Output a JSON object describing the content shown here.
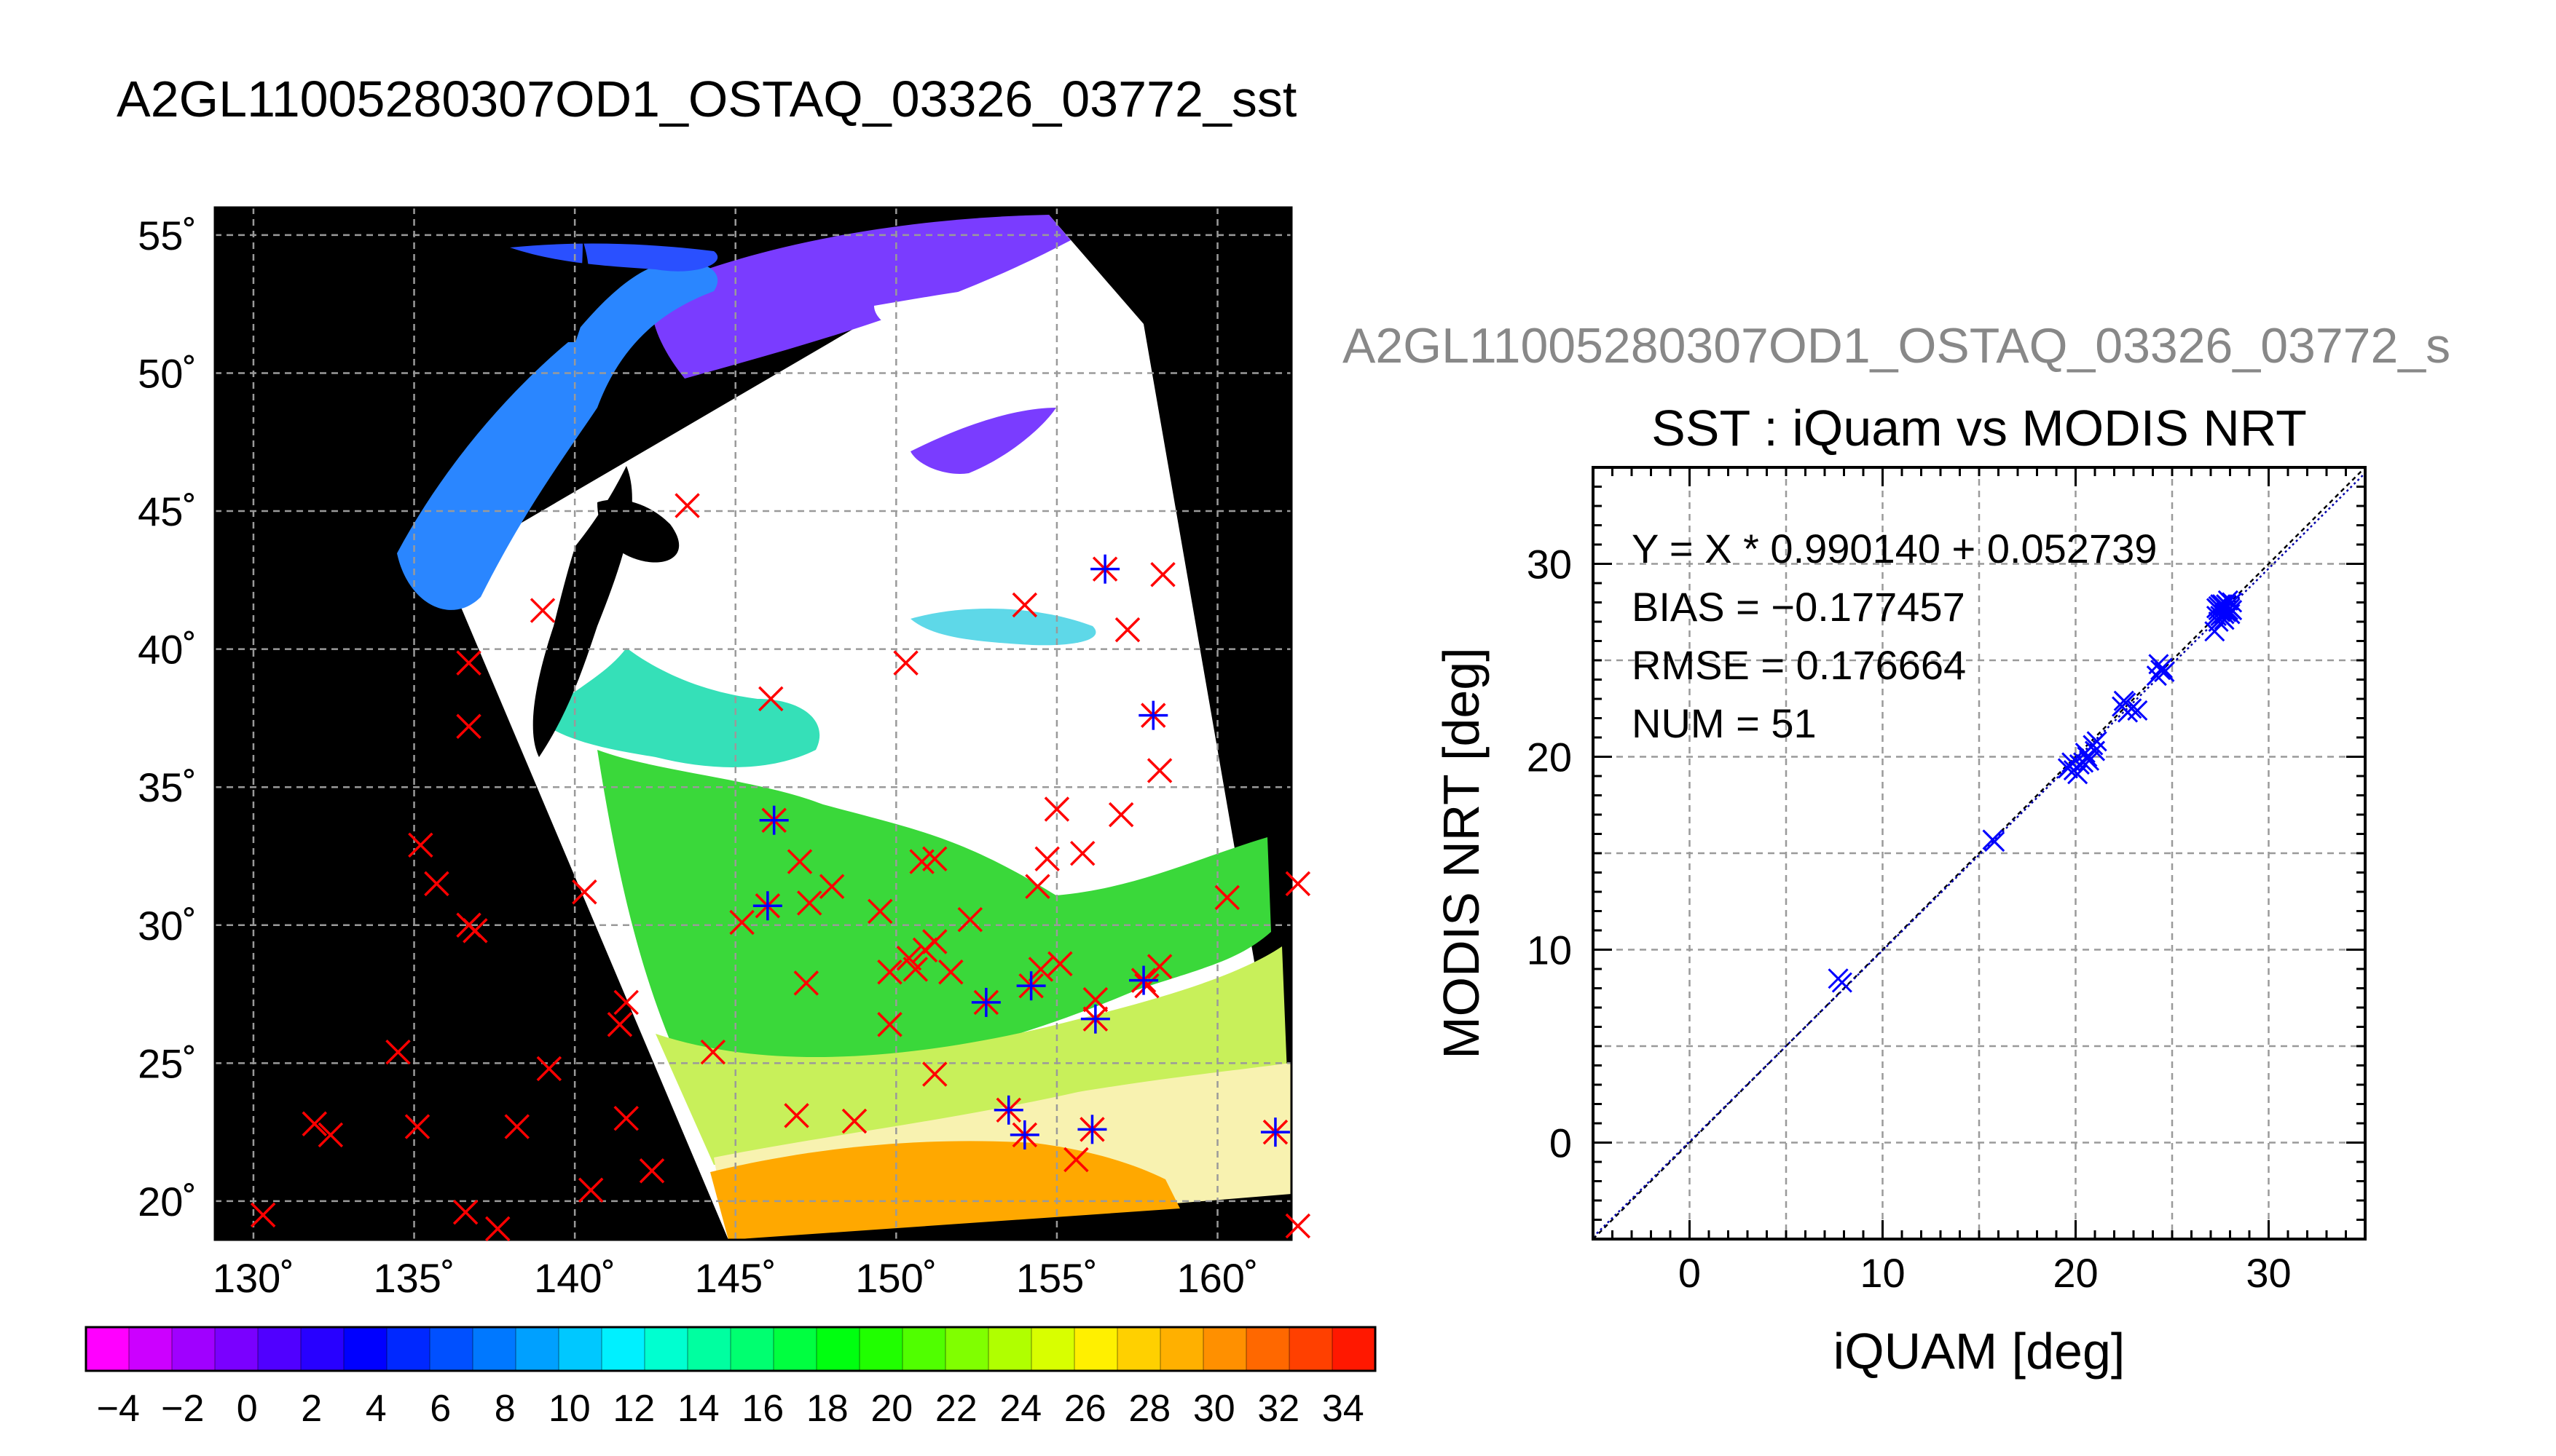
{
  "page_title": "A2GL11005280307OD1_OSTAQ_03326_03772_sst",
  "chart_data": [
    {
      "type": "map",
      "x_ticks": [
        130,
        135,
        140,
        145,
        150,
        155,
        160
      ],
      "y_ticks": [
        20,
        25,
        30,
        35,
        40,
        45,
        50,
        55
      ],
      "xlim": [
        128.8,
        162.3
      ],
      "ylim": [
        18.6,
        56
      ],
      "grid": true,
      "colorbar": {
        "ticks": [
          "−4",
          "−2",
          "0",
          "2",
          "4",
          "6",
          "8",
          "10",
          "12",
          "14",
          "16",
          "18",
          "20",
          "22",
          "24",
          "26",
          "28",
          "30",
          "32",
          "34"
        ],
        "range": [
          -5,
          35
        ],
        "colors": [
          "#ff00ff",
          "#cc00ff",
          "#a000ff",
          "#7a00ff",
          "#5000ff",
          "#2800ff",
          "#0000ff",
          "#0028ff",
          "#0050ff",
          "#0078ff",
          "#00a0ff",
          "#00c8ff",
          "#00f0ff",
          "#00ffd0",
          "#00ffa0",
          "#00ff70",
          "#00ff40",
          "#00ff10",
          "#20ff00",
          "#50ff00",
          "#80ff00",
          "#b0ff00",
          "#d8ff00",
          "#fff000",
          "#ffd000",
          "#ffb000",
          "#ff9000",
          "#ff6800",
          "#ff4000",
          "#ff1800"
        ]
      },
      "markers_matched": [
        {
          "lon": 146.2,
          "lat": 33.8
        },
        {
          "lon": 146.0,
          "lat": 30.7
        },
        {
          "lon": 152.8,
          "lat": 27.2
        },
        {
          "lon": 154.2,
          "lat": 27.8
        },
        {
          "lon": 156.2,
          "lat": 26.6
        },
        {
          "lon": 157.7,
          "lat": 28.0
        },
        {
          "lon": 153.5,
          "lat": 23.3
        },
        {
          "lon": 154.0,
          "lat": 22.4
        },
        {
          "lon": 156.1,
          "lat": 22.6
        },
        {
          "lon": 161.8,
          "lat": 22.5
        },
        {
          "lon": 156.5,
          "lat": 42.9
        },
        {
          "lon": 158.0,
          "lat": 37.6
        }
      ],
      "markers_unmatched": [
        {
          "lon": 143.5,
          "lat": 45.2
        },
        {
          "lon": 139.0,
          "lat": 41.4
        },
        {
          "lon": 136.7,
          "lat": 39.5
        },
        {
          "lon": 136.7,
          "lat": 37.2
        },
        {
          "lon": 135.2,
          "lat": 32.9
        },
        {
          "lon": 135.7,
          "lat": 31.5
        },
        {
          "lon": 136.7,
          "lat": 30.0
        },
        {
          "lon": 136.9,
          "lat": 29.8
        },
        {
          "lon": 140.3,
          "lat": 31.2
        },
        {
          "lon": 141.6,
          "lat": 27.2
        },
        {
          "lon": 141.4,
          "lat": 26.4
        },
        {
          "lon": 134.5,
          "lat": 25.4
        },
        {
          "lon": 139.2,
          "lat": 24.8
        },
        {
          "lon": 131.9,
          "lat": 22.8
        },
        {
          "lon": 132.4,
          "lat": 22.4
        },
        {
          "lon": 135.1,
          "lat": 22.7
        },
        {
          "lon": 138.2,
          "lat": 22.7
        },
        {
          "lon": 141.6,
          "lat": 23.0
        },
        {
          "lon": 142.4,
          "lat": 21.1
        },
        {
          "lon": 140.5,
          "lat": 20.4
        },
        {
          "lon": 136.6,
          "lat": 19.6
        },
        {
          "lon": 137.6,
          "lat": 19.0
        },
        {
          "lon": 130.3,
          "lat": 19.5
        },
        {
          "lon": 144.3,
          "lat": 25.4
        },
        {
          "lon": 145.2,
          "lat": 30.1
        },
        {
          "lon": 146.1,
          "lat": 38.2
        },
        {
          "lon": 150.3,
          "lat": 39.5
        },
        {
          "lon": 154.0,
          "lat": 41.6
        },
        {
          "lon": 157.2,
          "lat": 40.7
        },
        {
          "lon": 158.3,
          "lat": 42.7
        },
        {
          "lon": 158.2,
          "lat": 35.6
        },
        {
          "lon": 155.0,
          "lat": 34.2
        },
        {
          "lon": 157.0,
          "lat": 34.0
        },
        {
          "lon": 155.8,
          "lat": 32.6
        },
        {
          "lon": 154.7,
          "lat": 32.4
        },
        {
          "lon": 154.4,
          "lat": 31.4
        },
        {
          "lon": 160.3,
          "lat": 31.0
        },
        {
          "lon": 162.5,
          "lat": 31.5
        },
        {
          "lon": 147.0,
          "lat": 32.3
        },
        {
          "lon": 148.0,
          "lat": 31.4
        },
        {
          "lon": 147.3,
          "lat": 30.8
        },
        {
          "lon": 149.5,
          "lat": 30.5
        },
        {
          "lon": 150.8,
          "lat": 32.3
        },
        {
          "lon": 151.2,
          "lat": 32.4
        },
        {
          "lon": 152.3,
          "lat": 30.2
        },
        {
          "lon": 149.8,
          "lat": 28.3
        },
        {
          "lon": 150.4,
          "lat": 28.8
        },
        {
          "lon": 150.9,
          "lat": 29.1
        },
        {
          "lon": 151.2,
          "lat": 29.4
        },
        {
          "lon": 150.6,
          "lat": 28.4
        },
        {
          "lon": 151.7,
          "lat": 28.3
        },
        {
          "lon": 147.2,
          "lat": 27.9
        },
        {
          "lon": 149.8,
          "lat": 26.4
        },
        {
          "lon": 151.2,
          "lat": 24.6
        },
        {
          "lon": 154.5,
          "lat": 28.4
        },
        {
          "lon": 155.1,
          "lat": 28.6
        },
        {
          "lon": 157.8,
          "lat": 27.8
        },
        {
          "lon": 158.2,
          "lat": 28.5
        },
        {
          "lon": 156.2,
          "lat": 27.3
        },
        {
          "lon": 146.9,
          "lat": 23.1
        },
        {
          "lon": 148.7,
          "lat": 22.9
        },
        {
          "lon": 155.6,
          "lat": 21.5
        },
        {
          "lon": 162.5,
          "lat": 19.1
        }
      ],
      "marker_colors": {
        "matched": "#0000ff",
        "unmatched": "#ff0000"
      }
    },
    {
      "type": "scatter",
      "suptitle": "A2GL11005280307OD1_OSTAQ_03326_03772_s",
      "title": "SST : iQuam vs MODIS NRT",
      "xlabel": "iQUAM [deg]",
      "ylabel": "MODIS NRT [deg]",
      "xlim": [
        -5,
        35
      ],
      "ylim": [
        -5,
        35
      ],
      "x_ticks": [
        0,
        10,
        20,
        30
      ],
      "y_ticks": [
        0,
        10,
        20,
        30
      ],
      "grid": true,
      "annotations": [
        "Y = X * 0.990140 + 0.052739",
        "BIAS = −0.177457",
        "RMSE = 0.176664",
        "NUM = 51"
      ],
      "fit": {
        "slope": 0.99014,
        "intercept": 0.052739
      },
      "point_color": "#0000ff",
      "points": [
        [
          7.7,
          8.5
        ],
        [
          7.9,
          8.3
        ],
        [
          15.7,
          15.7
        ],
        [
          15.8,
          15.6
        ],
        [
          19.6,
          19.4
        ],
        [
          19.9,
          19.3
        ],
        [
          20.2,
          19.6
        ],
        [
          20.4,
          19.7
        ],
        [
          20.6,
          20.0
        ],
        [
          20.7,
          19.8
        ],
        [
          21.0,
          20.3
        ],
        [
          20.9,
          20.6
        ],
        [
          21.1,
          20.8
        ],
        [
          20.1,
          19.1
        ],
        [
          19.8,
          19.7
        ],
        [
          20.5,
          20.2
        ],
        [
          22.4,
          22.6
        ],
        [
          22.6,
          22.8
        ],
        [
          22.9,
          22.5
        ],
        [
          23.2,
          22.4
        ],
        [
          22.7,
          22.3
        ],
        [
          22.5,
          22.9
        ],
        [
          24.2,
          24.2
        ],
        [
          24.4,
          24.5
        ],
        [
          24.6,
          24.4
        ],
        [
          24.3,
          24.8
        ],
        [
          24.5,
          24.6
        ],
        [
          27.2,
          26.5
        ],
        [
          27.4,
          27.0
        ],
        [
          27.5,
          27.3
        ],
        [
          27.6,
          27.6
        ],
        [
          27.7,
          27.8
        ],
        [
          27.8,
          27.9
        ],
        [
          27.9,
          27.6
        ],
        [
          28.0,
          27.4
        ],
        [
          28.1,
          28.0
        ],
        [
          27.5,
          27.9
        ],
        [
          27.3,
          27.7
        ],
        [
          27.6,
          27.2
        ],
        [
          27.8,
          27.5
        ],
        [
          27.4,
          27.6
        ],
        [
          27.9,
          28.1
        ],
        [
          27.7,
          27.1
        ],
        [
          28.0,
          27.7
        ],
        [
          27.6,
          27.9
        ],
        [
          27.5,
          27.5
        ],
        [
          27.7,
          27.4
        ],
        [
          27.3,
          27.3
        ],
        [
          27.9,
          27.8
        ],
        [
          27.4,
          27.8
        ],
        [
          28.1,
          27.6
        ]
      ]
    }
  ]
}
